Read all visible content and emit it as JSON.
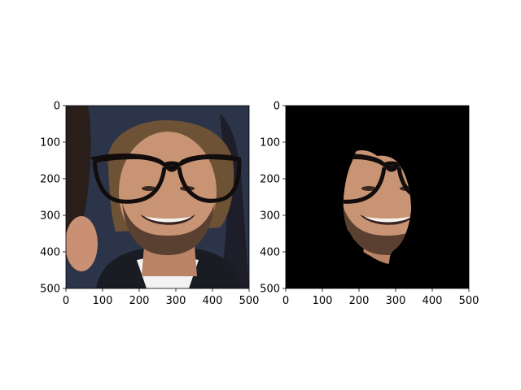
{
  "chart_data": [
    {
      "type": "image",
      "content": "face photo with drawn-on black eyeglasses",
      "xlim": [
        0,
        500
      ],
      "ylim": [
        500,
        0
      ],
      "x_ticks": [
        "0",
        "100",
        "200",
        "300",
        "400",
        "500"
      ],
      "y_ticks": [
        "0",
        "100",
        "200",
        "300",
        "400",
        "500"
      ],
      "grid": false
    },
    {
      "type": "image",
      "content": "segmented face region on black background, eyeglasses partly masked",
      "xlim": [
        0,
        500
      ],
      "ylim": [
        500,
        0
      ],
      "x_ticks": [
        "0",
        "100",
        "200",
        "300",
        "400",
        "500"
      ],
      "y_ticks": [
        "0",
        "100",
        "200",
        "300",
        "400",
        "500"
      ],
      "grid": false
    }
  ],
  "colors": {
    "background_left": "#2b3448",
    "mask_background": "#000000",
    "skin": "#c89474",
    "hair": "#6e5236",
    "glasses": "#120c0c",
    "shirt": "#f2f2f2",
    "suit": "#1a1c24"
  }
}
